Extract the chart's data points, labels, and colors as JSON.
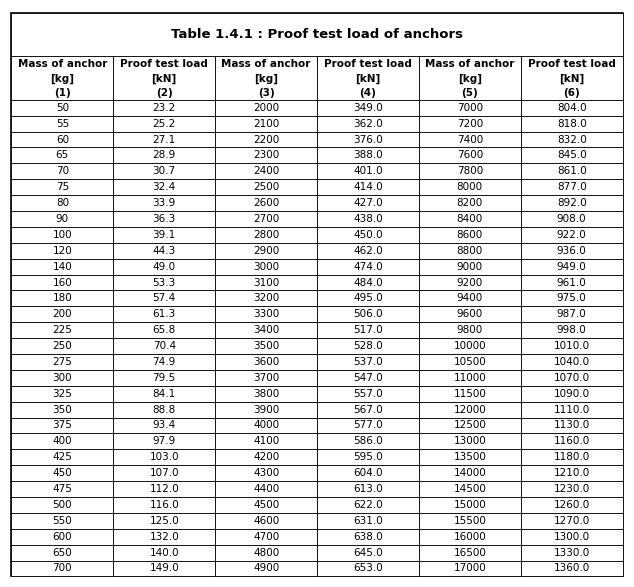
{
  "title": "Table 1.4.1 : Proof test load of anchors",
  "col_headers_line1": [
    "Mass of anchor",
    "Proof test load",
    "Mass of anchor",
    "Proof test load",
    "Mass of anchor",
    "Proof test load"
  ],
  "col_headers_line2": [
    "[kg]",
    "[kN]",
    "[kg]",
    "[kN]",
    "[kg]",
    "[kN]"
  ],
  "col_headers_line3": [
    "(1)",
    "(2)",
    "(3)",
    "(4)",
    "(5)",
    "(6)"
  ],
  "rows": [
    [
      "50",
      "23.2",
      "2000",
      "349.0",
      "7000",
      "804.0"
    ],
    [
      "55",
      "25.2",
      "2100",
      "362.0",
      "7200",
      "818.0"
    ],
    [
      "60",
      "27.1",
      "2200",
      "376.0",
      "7400",
      "832.0"
    ],
    [
      "65",
      "28.9",
      "2300",
      "388.0",
      "7600",
      "845.0"
    ],
    [
      "70",
      "30.7",
      "2400",
      "401.0",
      "7800",
      "861.0"
    ],
    [
      "75",
      "32.4",
      "2500",
      "414.0",
      "8000",
      "877.0"
    ],
    [
      "80",
      "33.9",
      "2600",
      "427.0",
      "8200",
      "892.0"
    ],
    [
      "90",
      "36.3",
      "2700",
      "438.0",
      "8400",
      "908.0"
    ],
    [
      "100",
      "39.1",
      "2800",
      "450.0",
      "8600",
      "922.0"
    ],
    [
      "120",
      "44.3",
      "2900",
      "462.0",
      "8800",
      "936.0"
    ],
    [
      "140",
      "49.0",
      "3000",
      "474.0",
      "9000",
      "949.0"
    ],
    [
      "160",
      "53.3",
      "3100",
      "484.0",
      "9200",
      "961.0"
    ],
    [
      "180",
      "57.4",
      "3200",
      "495.0",
      "9400",
      "975.0"
    ],
    [
      "200",
      "61.3",
      "3300",
      "506.0",
      "9600",
      "987.0"
    ],
    [
      "225",
      "65.8",
      "3400",
      "517.0",
      "9800",
      "998.0"
    ],
    [
      "250",
      "70.4",
      "3500",
      "528.0",
      "10000",
      "1010.0"
    ],
    [
      "275",
      "74.9",
      "3600",
      "537.0",
      "10500",
      "1040.0"
    ],
    [
      "300",
      "79.5",
      "3700",
      "547.0",
      "11000",
      "1070.0"
    ],
    [
      "325",
      "84.1",
      "3800",
      "557.0",
      "11500",
      "1090.0"
    ],
    [
      "350",
      "88.8",
      "3900",
      "567.0",
      "12000",
      "1110.0"
    ],
    [
      "375",
      "93.4",
      "4000",
      "577.0",
      "12500",
      "1130.0"
    ],
    [
      "400",
      "97.9",
      "4100",
      "586.0",
      "13000",
      "1160.0"
    ],
    [
      "425",
      "103.0",
      "4200",
      "595.0",
      "13500",
      "1180.0"
    ],
    [
      "450",
      "107.0",
      "4300",
      "604.0",
      "14000",
      "1210.0"
    ],
    [
      "475",
      "112.0",
      "4400",
      "613.0",
      "14500",
      "1230.0"
    ],
    [
      "500",
      "116.0",
      "4500",
      "622.0",
      "15000",
      "1260.0"
    ],
    [
      "550",
      "125.0",
      "4600",
      "631.0",
      "15500",
      "1270.0"
    ],
    [
      "600",
      "132.0",
      "4700",
      "638.0",
      "16000",
      "1300.0"
    ],
    [
      "650",
      "140.0",
      "4800",
      "645.0",
      "16500",
      "1330.0"
    ],
    [
      "700",
      "149.0",
      "4900",
      "653.0",
      "17000",
      "1360.0"
    ]
  ],
  "title_fontsize": 9.5,
  "header_fontsize": 7.5,
  "cell_fontsize": 7.5,
  "bg_color": "#ffffff",
  "border_color": "#000000",
  "figsize": [
    6.34,
    5.87
  ],
  "dpi": 100
}
